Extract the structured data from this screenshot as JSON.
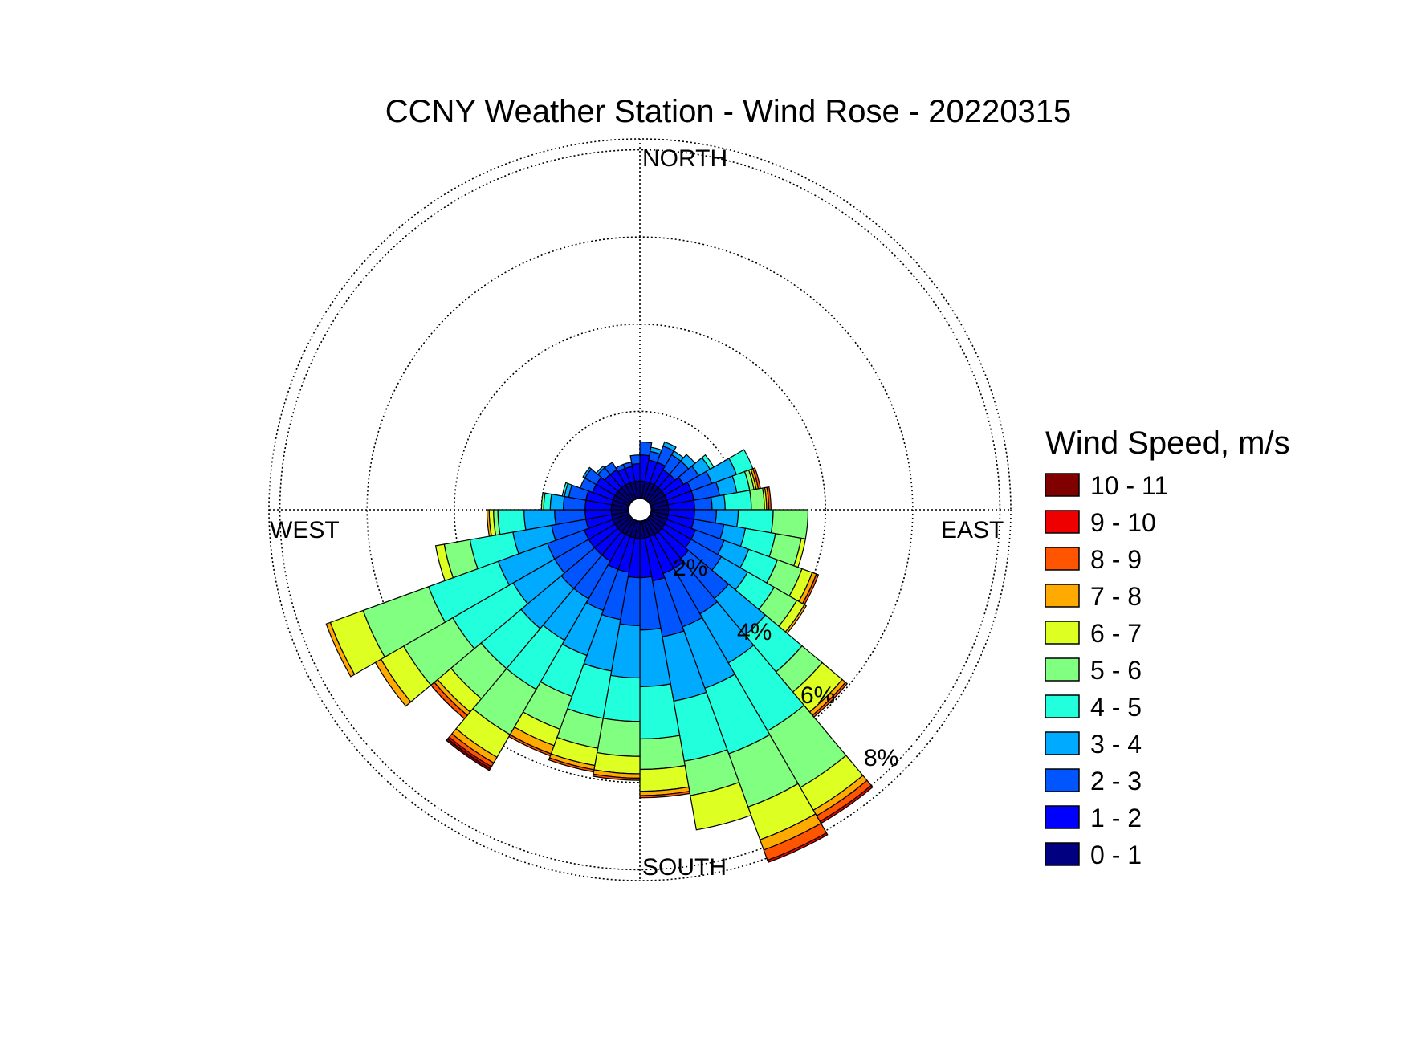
{
  "chart_data": {
    "type": "wind-rose",
    "title": "CCNY Weather Station - Wind Rose - 20220315",
    "directions": {
      "north": "NORTH",
      "east": "EAST",
      "south": "SOUTH",
      "west": "WEST"
    },
    "ring_labels": [
      "2%",
      "4%",
      "6%",
      "8%"
    ],
    "ring_values": [
      2,
      4,
      6,
      8
    ],
    "max_percent": 8.25,
    "legend_title": "Wind Speed, m/s",
    "bins": [
      {
        "label": "0 - 1",
        "color": "#000080"
      },
      {
        "label": "1 - 2",
        "color": "#0000ff"
      },
      {
        "label": "2 - 3",
        "color": "#0055ff"
      },
      {
        "label": "3 - 4",
        "color": "#00aaff"
      },
      {
        "label": "4 - 5",
        "color": "#22ffdd"
      },
      {
        "label": "5 - 6",
        "color": "#80ff80"
      },
      {
        "label": "6 - 7",
        "color": "#ddff22"
      },
      {
        "label": "7 - 8",
        "color": "#ffaa00"
      },
      {
        "label": "8 - 9",
        "color": "#ff5500"
      },
      {
        "label": "9 - 10",
        "color": "#ee0000"
      },
      {
        "label": "10 - 11",
        "color": "#800000"
      }
    ],
    "sector_width_deg": 10,
    "sectors": [
      {
        "direction_deg": 5,
        "values": [
          0.4,
          0.6,
          0.3,
          0.0,
          0.0,
          0.0,
          0.0,
          0.0,
          0.0,
          0.0,
          0.0
        ]
      },
      {
        "direction_deg": 15,
        "values": [
          0.4,
          0.5,
          0.2,
          0.1,
          0.0,
          0.0,
          0.0,
          0.0,
          0.0,
          0.0,
          0.0
        ]
      },
      {
        "direction_deg": 25,
        "values": [
          0.4,
          0.5,
          0.4,
          0.1,
          0.0,
          0.0,
          0.0,
          0.0,
          0.0,
          0.0,
          0.0
        ]
      },
      {
        "direction_deg": 35,
        "values": [
          0.4,
          0.4,
          0.4,
          0.1,
          0.0,
          0.0,
          0.0,
          0.0,
          0.0,
          0.0,
          0.0
        ]
      },
      {
        "direction_deg": 45,
        "values": [
          0.4,
          0.4,
          0.4,
          0.2,
          0.0,
          0.0,
          0.0,
          0.0,
          0.0,
          0.0,
          0.0
        ]
      },
      {
        "direction_deg": 55,
        "values": [
          0.4,
          0.5,
          0.4,
          0.3,
          0.1,
          0.0,
          0.0,
          0.0,
          0.0,
          0.0,
          0.0
        ]
      },
      {
        "direction_deg": 65,
        "values": [
          0.4,
          0.6,
          0.5,
          0.6,
          0.4,
          0.0,
          0.0,
          0.0,
          0.0,
          0.0,
          0.0
        ]
      },
      {
        "direction_deg": 75,
        "values": [
          0.4,
          0.6,
          0.6,
          0.4,
          0.3,
          0.1,
          0.05,
          0.05,
          0.05,
          0.0,
          0.0
        ]
      },
      {
        "direction_deg": 85,
        "values": [
          0.4,
          0.6,
          0.4,
          0.3,
          0.6,
          0.3,
          0.05,
          0.05,
          0.05,
          0.0,
          0.0
        ]
      },
      {
        "direction_deg": 95,
        "values": [
          0.4,
          0.6,
          0.5,
          0.5,
          0.8,
          0.8,
          0.0,
          0.0,
          0.0,
          0.0,
          0.0
        ]
      },
      {
        "direction_deg": 105,
        "values": [
          0.4,
          0.6,
          0.7,
          0.5,
          0.7,
          0.6,
          0.1,
          0.0,
          0.0,
          0.0,
          0.0
        ]
      },
      {
        "direction_deg": 115,
        "values": [
          0.4,
          0.7,
          0.7,
          0.6,
          0.7,
          0.6,
          0.25,
          0.1,
          0.05,
          0.0,
          0.0
        ]
      },
      {
        "direction_deg": 125,
        "values": [
          0.4,
          0.7,
          0.8,
          0.7,
          0.7,
          0.6,
          0.2,
          0.05,
          0.0,
          0.0,
          0.0
        ]
      },
      {
        "direction_deg": 135,
        "values": [
          0.4,
          0.8,
          1.2,
          1.1,
          1.1,
          0.6,
          0.6,
          0.1,
          0.05,
          0.0,
          0.0
        ]
      },
      {
        "direction_deg": 145,
        "values": [
          0.4,
          0.9,
          1.2,
          1.3,
          1.8,
          1.5,
          0.6,
          0.15,
          0.15,
          0.05,
          0.0
        ]
      },
      {
        "direction_deg": 155,
        "values": [
          0.4,
          0.9,
          1.3,
          1.5,
          1.6,
          1.3,
          0.8,
          0.25,
          0.25,
          0.05,
          0.0
        ]
      },
      {
        "direction_deg": 165,
        "values": [
          0.4,
          1.0,
          1.3,
          1.5,
          1.4,
          0.8,
          0.8,
          0.0,
          0.0,
          0.0,
          0.0
        ]
      },
      {
        "direction_deg": 175,
        "values": [
          0.4,
          0.9,
          1.2,
          1.3,
          1.2,
          0.7,
          0.5,
          0.1,
          0.05,
          0.0,
          0.0
        ]
      },
      {
        "direction_deg": 185,
        "values": [
          0.4,
          0.9,
          1.1,
          1.2,
          1.0,
          0.8,
          0.4,
          0.1,
          0.05,
          0.0,
          0.0
        ]
      },
      {
        "direction_deg": 195,
        "values": [
          0.4,
          0.8,
          1.1,
          1.2,
          1.1,
          0.7,
          0.4,
          0.1,
          0.05,
          0.0,
          0.0
        ]
      },
      {
        "direction_deg": 205,
        "values": [
          0.4,
          0.8,
          1.0,
          1.1,
          1.0,
          0.8,
          0.4,
          0.2,
          0.05,
          0.0,
          0.0
        ]
      },
      {
        "direction_deg": 215,
        "values": [
          0.4,
          0.7,
          1.0,
          1.1,
          1.3,
          1.2,
          0.6,
          0.15,
          0.1,
          0.05,
          0.05
        ]
      },
      {
        "direction_deg": 225,
        "values": [
          0.4,
          0.7,
          1.0,
          1.2,
          1.2,
          0.9,
          0.4,
          0.1,
          0.1,
          0.0,
          0.0
        ]
      },
      {
        "direction_deg": 235,
        "values": [
          0.4,
          0.7,
          0.9,
          1.1,
          1.6,
          1.3,
          0.6,
          0.15,
          0.0,
          0.0,
          0.0
        ]
      },
      {
        "direction_deg": 245,
        "values": [
          0.4,
          0.7,
          0.9,
          1.2,
          1.7,
          1.6,
          0.8,
          0.1,
          0.0,
          0.0,
          0.0
        ]
      },
      {
        "direction_deg": 255,
        "values": [
          0.4,
          0.6,
          0.8,
          0.9,
          1.0,
          0.6,
          0.2,
          0.0,
          0.0,
          0.0,
          0.0
        ]
      },
      {
        "direction_deg": 265,
        "values": [
          0.4,
          0.6,
          0.7,
          0.7,
          0.6,
          0.1,
          0.1,
          0.05,
          0.0,
          0.0,
          0.0
        ]
      },
      {
        "direction_deg": 275,
        "values": [
          0.4,
          0.6,
          0.5,
          0.3,
          0.15,
          0.05,
          0.0,
          0.0,
          0.0,
          0.0,
          0.0
        ]
      },
      {
        "direction_deg": 285,
        "values": [
          0.4,
          0.6,
          0.4,
          0.1,
          0.05,
          0.0,
          0.0,
          0.0,
          0.0,
          0.0,
          0.0
        ]
      },
      {
        "direction_deg": 295,
        "values": [
          0.4,
          0.5,
          0.3,
          0.0,
          0.0,
          0.0,
          0.0,
          0.0,
          0.0,
          0.0,
          0.0
        ]
      },
      {
        "direction_deg": 305,
        "values": [
          0.4,
          0.5,
          0.3,
          0.05,
          0.0,
          0.0,
          0.0,
          0.0,
          0.0,
          0.0,
          0.0
        ]
      },
      {
        "direction_deg": 315,
        "values": [
          0.4,
          0.4,
          0.2,
          0.05,
          0.0,
          0.0,
          0.0,
          0.0,
          0.0,
          0.0,
          0.0
        ]
      },
      {
        "direction_deg": 325,
        "values": [
          0.4,
          0.4,
          0.2,
          0.0,
          0.0,
          0.0,
          0.0,
          0.0,
          0.0,
          0.0,
          0.0
        ]
      },
      {
        "direction_deg": 335,
        "values": [
          0.4,
          0.35,
          0.1,
          0.0,
          0.0,
          0.0,
          0.0,
          0.0,
          0.0,
          0.0,
          0.0
        ]
      },
      {
        "direction_deg": 345,
        "values": [
          0.4,
          0.35,
          0.1,
          0.0,
          0.0,
          0.0,
          0.0,
          0.0,
          0.0,
          0.0,
          0.0
        ]
      },
      {
        "direction_deg": 355,
        "values": [
          0.4,
          0.4,
          0.2,
          0.0,
          0.0,
          0.0,
          0.0,
          0.0,
          0.0,
          0.0,
          0.0
        ]
      }
    ],
    "grid": true,
    "legend_position": "right"
  }
}
